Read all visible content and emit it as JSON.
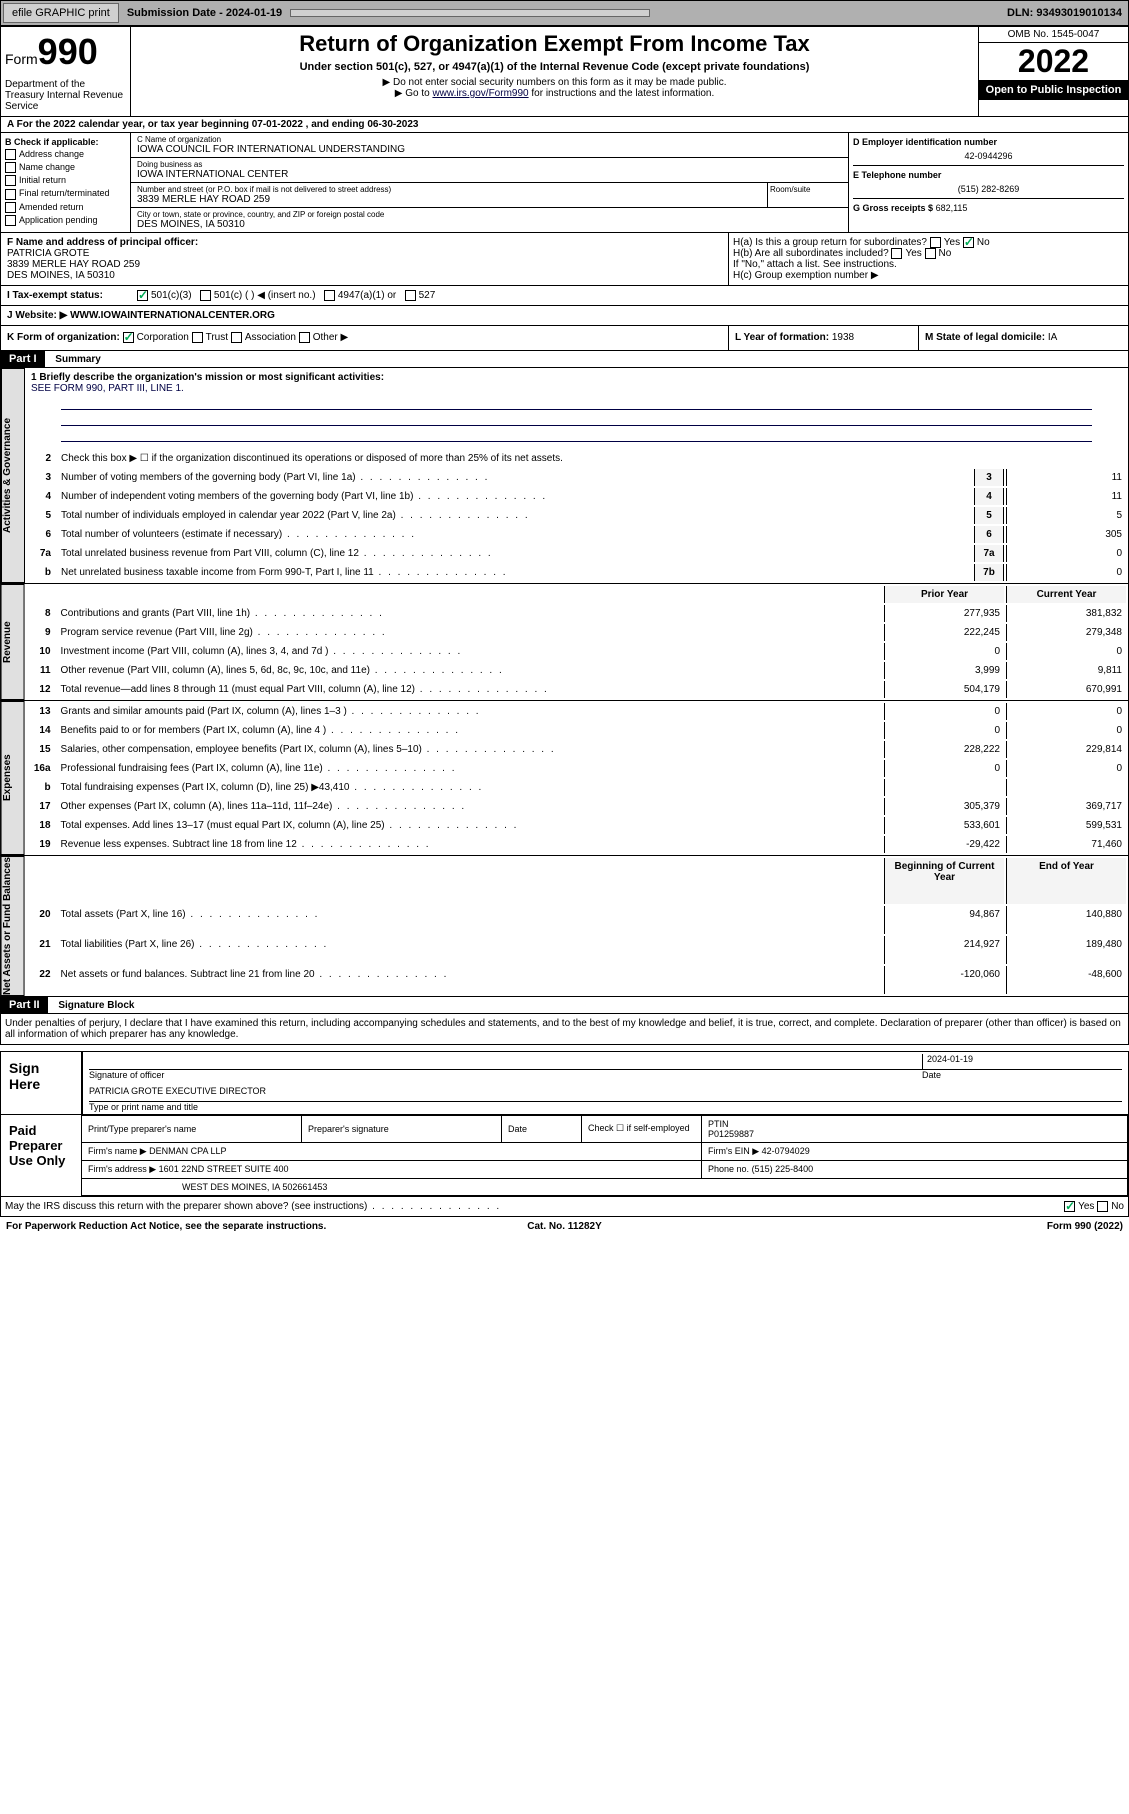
{
  "topbar": {
    "efile": "efile GRAPHIC print",
    "sub_label": "Submission Date - 2024-01-19",
    "dln": "DLN: 93493019010134"
  },
  "header": {
    "form_prefix": "Form",
    "form_num": "990",
    "dept": "Department of the Treasury Internal Revenue Service",
    "title": "Return of Organization Exempt From Income Tax",
    "subtitle": "Under section 501(c), 527, or 4947(a)(1) of the Internal Revenue Code (except private foundations)",
    "note1": "▶ Do not enter social security numbers on this form as it may be made public.",
    "note2_pre": "▶ Go to ",
    "note2_link": "www.irs.gov/Form990",
    "note2_post": " for instructions and the latest information.",
    "omb": "OMB No. 1545-0047",
    "year": "2022",
    "inspect": "Open to Public Inspection"
  },
  "line_a": "A For the 2022 calendar year, or tax year beginning 07-01-2022  , and ending 06-30-2023",
  "box_b": {
    "title": "B Check if applicable:",
    "items": [
      "Address change",
      "Name change",
      "Initial return",
      "Final return/terminated",
      "Amended return",
      "Application pending"
    ]
  },
  "box_c": {
    "label": "C Name of organization",
    "name": "IOWA COUNCIL FOR INTERNATIONAL UNDERSTANDING",
    "dba_label": "Doing business as",
    "dba": "IOWA INTERNATIONAL CENTER",
    "addr_label": "Number and street (or P.O. box if mail is not delivered to street address)",
    "room_label": "Room/suite",
    "addr": "3839 MERLE HAY ROAD 259",
    "city_label": "City or town, state or province, country, and ZIP or foreign postal code",
    "city": "DES MOINES, IA  50310"
  },
  "box_d": {
    "label": "D Employer identification number",
    "val": "42-0944296"
  },
  "box_e": {
    "label": "E Telephone number",
    "val": "(515) 282-8269"
  },
  "box_g": {
    "label": "G Gross receipts $",
    "val": "682,115"
  },
  "box_f": {
    "label": "F Name and address of principal officer:",
    "name": "PATRICIA GROTE",
    "addr": "3839 MERLE HAY ROAD 259",
    "city": "DES MOINES, IA  50310"
  },
  "box_h": {
    "ha": "H(a)  Is this a group return for subordinates?",
    "hb": "H(b)  Are all subordinates included?",
    "hnote": "If \"No,\" attach a list. See instructions.",
    "hc": "H(c)  Group exemption number ▶"
  },
  "box_i": {
    "label": "I  Tax-exempt status:",
    "opts": [
      "501(c)(3)",
      "501(c) (  ) ◀ (insert no.)",
      "4947(a)(1) or",
      "527"
    ]
  },
  "box_j": {
    "label": "J  Website: ▶",
    "val": "WWW.IOWAINTERNATIONALCENTER.ORG"
  },
  "box_k": "K Form of organization:",
  "k_opts": [
    "Corporation",
    "Trust",
    "Association",
    "Other ▶"
  ],
  "box_l": {
    "label": "L Year of formation:",
    "val": "1938"
  },
  "box_m": {
    "label": "M State of legal domicile:",
    "val": "IA"
  },
  "part1": {
    "label": "Part I",
    "title": "Summary"
  },
  "mission": {
    "q": "1  Briefly describe the organization's mission or most significant activities:",
    "a": "SEE FORM 990, PART III, LINE 1."
  },
  "lines_simple": [
    {
      "n": "2",
      "d": "Check this box ▶ ☐  if the organization discontinued its operations or disposed of more than 25% of its net assets."
    },
    {
      "n": "3",
      "d": "Number of voting members of the governing body (Part VI, line 1a)",
      "box": "3",
      "v": "11"
    },
    {
      "n": "4",
      "d": "Number of independent voting members of the governing body (Part VI, line 1b)",
      "box": "4",
      "v": "11"
    },
    {
      "n": "5",
      "d": "Total number of individuals employed in calendar year 2022 (Part V, line 2a)",
      "box": "5",
      "v": "5"
    },
    {
      "n": "6",
      "d": "Total number of volunteers (estimate if necessary)",
      "box": "6",
      "v": "305"
    },
    {
      "n": "7a",
      "d": "Total unrelated business revenue from Part VIII, column (C), line 12",
      "box": "7a",
      "v": "0"
    },
    {
      "n": "b",
      "d": "Net unrelated business taxable income from Form 990-T, Part I, line 11",
      "box": "7b",
      "v": "0"
    }
  ],
  "col_prior": "Prior Year",
  "col_current": "Current Year",
  "revenue_lines": [
    {
      "n": "8",
      "d": "Contributions and grants (Part VIII, line 1h)",
      "p": "277,935",
      "c": "381,832"
    },
    {
      "n": "9",
      "d": "Program service revenue (Part VIII, line 2g)",
      "p": "222,245",
      "c": "279,348"
    },
    {
      "n": "10",
      "d": "Investment income (Part VIII, column (A), lines 3, 4, and 7d )",
      "p": "0",
      "c": "0"
    },
    {
      "n": "11",
      "d": "Other revenue (Part VIII, column (A), lines 5, 6d, 8c, 9c, 10c, and 11e)",
      "p": "3,999",
      "c": "9,811"
    },
    {
      "n": "12",
      "d": "Total revenue—add lines 8 through 11 (must equal Part VIII, column (A), line 12)",
      "p": "504,179",
      "c": "670,991"
    }
  ],
  "expense_lines": [
    {
      "n": "13",
      "d": "Grants and similar amounts paid (Part IX, column (A), lines 1–3 )",
      "p": "0",
      "c": "0"
    },
    {
      "n": "14",
      "d": "Benefits paid to or for members (Part IX, column (A), line 4 )",
      "p": "0",
      "c": "0"
    },
    {
      "n": "15",
      "d": "Salaries, other compensation, employee benefits (Part IX, column (A), lines 5–10)",
      "p": "228,222",
      "c": "229,814"
    },
    {
      "n": "16a",
      "d": "Professional fundraising fees (Part IX, column (A), line 11e)",
      "p": "0",
      "c": "0"
    },
    {
      "n": "b",
      "d": "Total fundraising expenses (Part IX, column (D), line 25) ▶43,410",
      "p": "",
      "c": ""
    },
    {
      "n": "17",
      "d": "Other expenses (Part IX, column (A), lines 11a–11d, 11f–24e)",
      "p": "305,379",
      "c": "369,717"
    },
    {
      "n": "18",
      "d": "Total expenses. Add lines 13–17 (must equal Part IX, column (A), line 25)",
      "p": "533,601",
      "c": "599,531"
    },
    {
      "n": "19",
      "d": "Revenue less expenses. Subtract line 18 from line 12",
      "p": "-29,422",
      "c": "71,460"
    }
  ],
  "col_begin": "Beginning of Current Year",
  "col_end": "End of Year",
  "asset_lines": [
    {
      "n": "20",
      "d": "Total assets (Part X, line 16)",
      "p": "94,867",
      "c": "140,880"
    },
    {
      "n": "21",
      "d": "Total liabilities (Part X, line 26)",
      "p": "214,927",
      "c": "189,480"
    },
    {
      "n": "22",
      "d": "Net assets or fund balances. Subtract line 21 from line 20",
      "p": "-120,060",
      "c": "-48,600"
    }
  ],
  "vtabs": {
    "ag": "Activities & Governance",
    "rev": "Revenue",
    "exp": "Expenses",
    "na": "Net Assets or Fund Balances"
  },
  "part2": {
    "label": "Part II",
    "title": "Signature Block"
  },
  "penalty": "Under penalties of perjury, I declare that I have examined this return, including accompanying schedules and statements, and to the best of my knowledge and belief, it is true, correct, and complete. Declaration of preparer (other than officer) is based on all information of which preparer has any knowledge.",
  "sign": {
    "label": "Sign Here",
    "sig_of": "Signature of officer",
    "date_label": "Date",
    "date": "2024-01-19",
    "name": "PATRICIA GROTE  EXECUTIVE DIRECTOR",
    "name_label": "Type or print name and title"
  },
  "prep": {
    "label": "Paid Preparer Use Only",
    "cols": [
      "Print/Type preparer's name",
      "Preparer's signature",
      "Date"
    ],
    "check": "Check ☐ if self-employed",
    "ptin_label": "PTIN",
    "ptin": "P01259887",
    "firm_label": "Firm's name  ▶",
    "firm": "DENMAN CPA LLP",
    "ein_label": "Firm's EIN ▶",
    "ein": "42-0794029",
    "addr_label": "Firm's address ▶",
    "addr": "1601 22ND STREET SUITE 400",
    "addr2": "WEST DES MOINES, IA  502661453",
    "phone_label": "Phone no.",
    "phone": "(515) 225-8400"
  },
  "discuss": "May the IRS discuss this return with the preparer shown above? (see instructions)",
  "footer": {
    "left": "For Paperwork Reduction Act Notice, see the separate instructions.",
    "mid": "Cat. No. 11282Y",
    "right": "Form 990 (2022)"
  }
}
